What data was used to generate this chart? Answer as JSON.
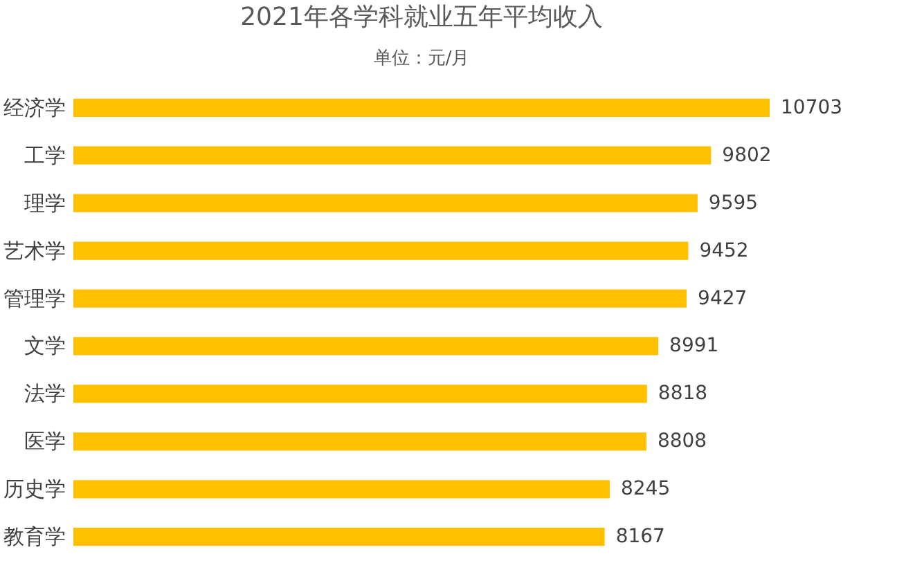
{
  "chart_data": {
    "type": "bar",
    "orientation": "horizontal",
    "title": "2021年各学科就业五年平均收入",
    "subtitle": "单位：元/月",
    "categories": [
      "经济学",
      "工学",
      "理学",
      "艺术学",
      "管理学",
      "文学",
      "法学",
      "医学",
      "历史学",
      "教育学"
    ],
    "values": [
      10703,
      9802,
      9595,
      9452,
      9427,
      8991,
      8818,
      8808,
      8245,
      8167
    ],
    "color": "#ffc000",
    "data_labels": true,
    "grid": false,
    "tick_labels": "y"
  }
}
